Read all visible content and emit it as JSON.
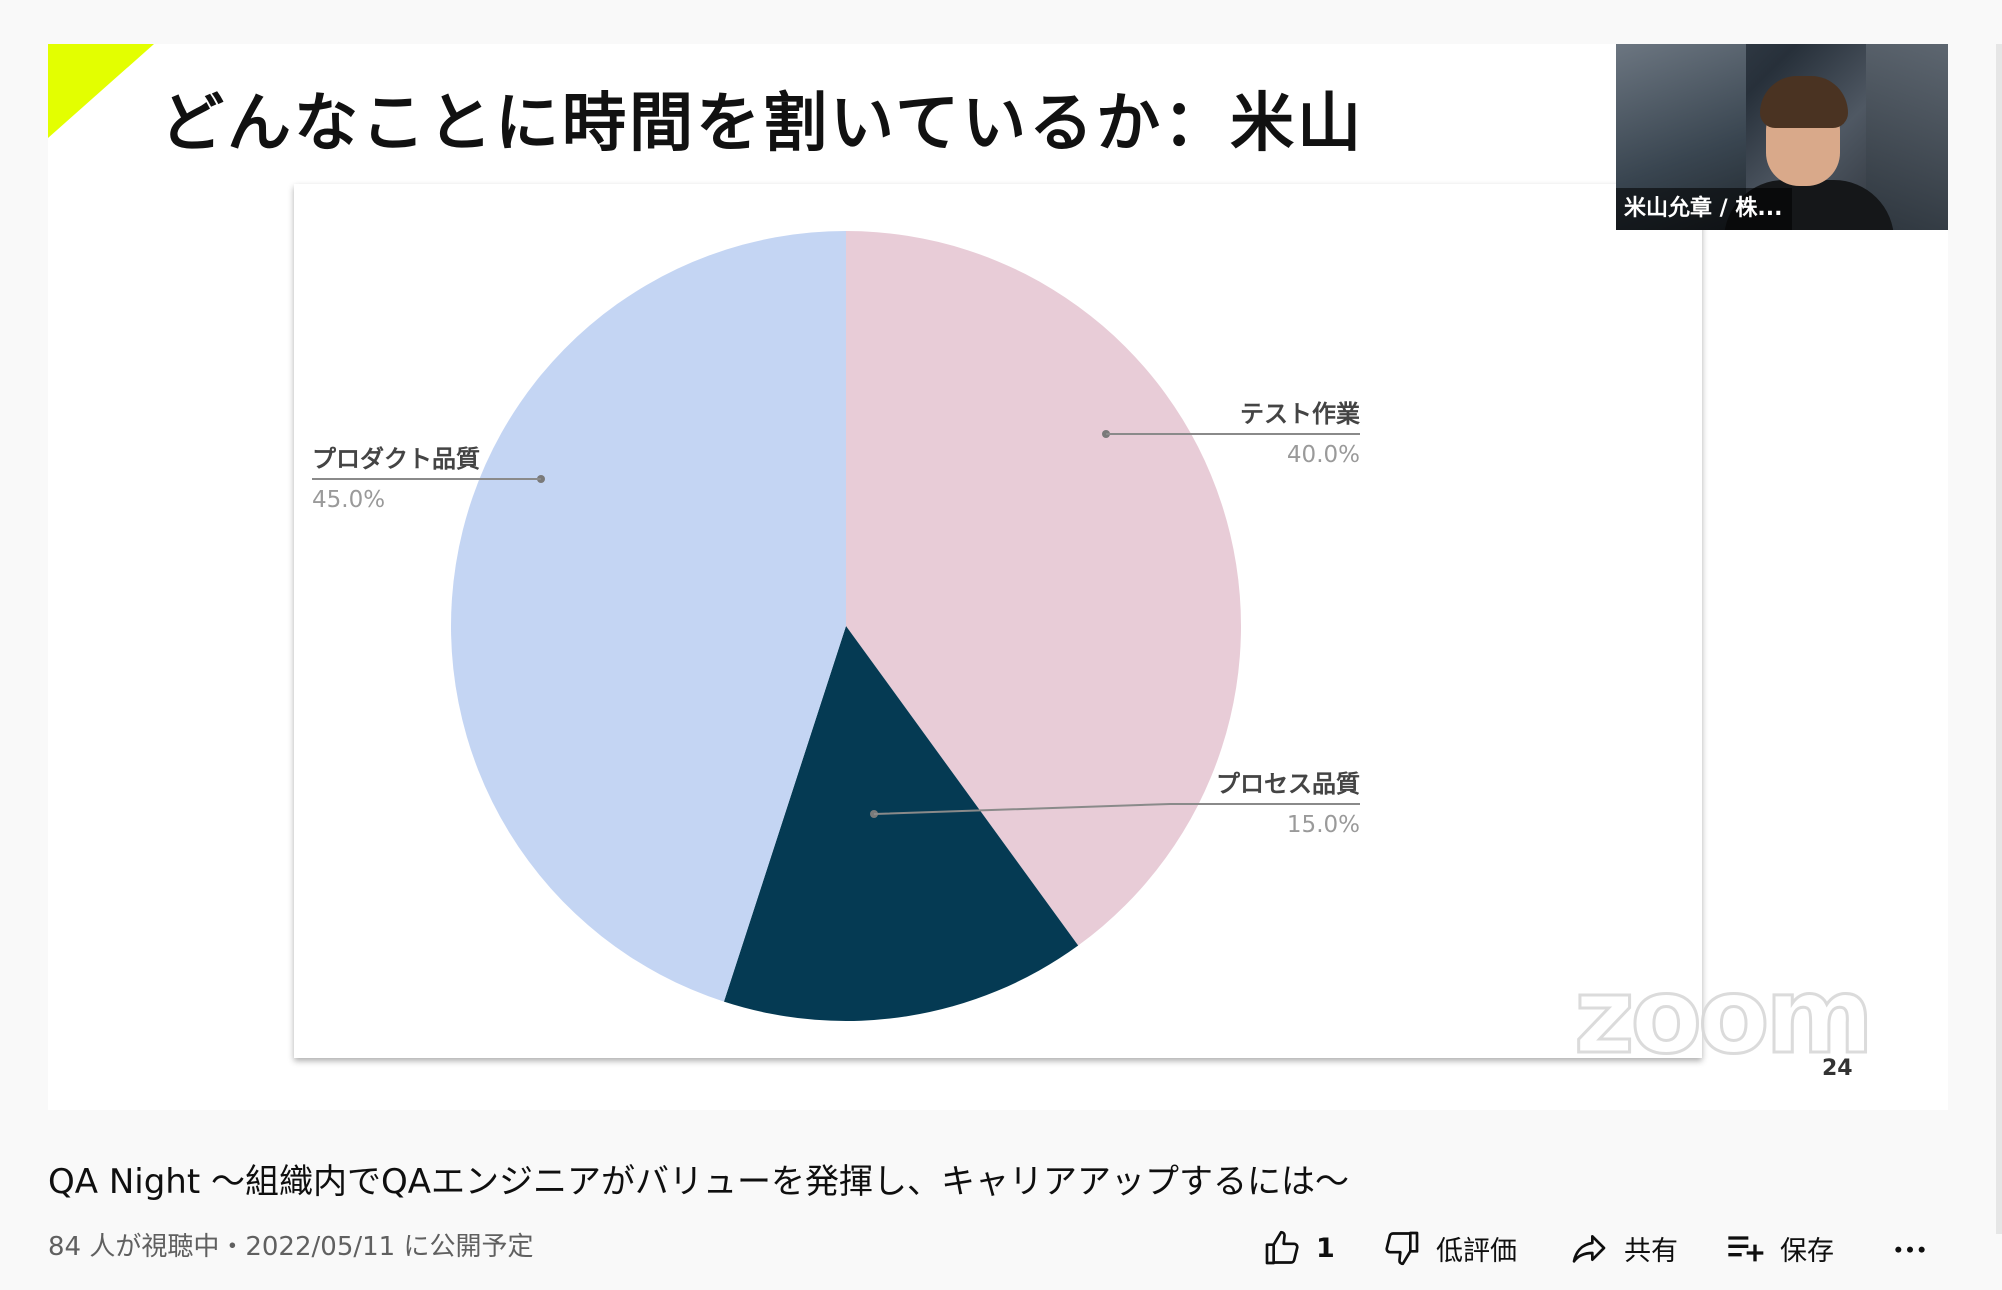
{
  "slide": {
    "title": "どんなことに時間を割いているか：米山",
    "page_number": "24",
    "watermark": "zoom"
  },
  "webcam": {
    "name_label": "米山允章 / 株..."
  },
  "chart_data": {
    "type": "pie",
    "title": "",
    "slices": [
      {
        "label": "テスト作業",
        "percent_label": "40.0%",
        "value": 40.0,
        "color": "#e8ccd7"
      },
      {
        "label": "プロセス品質",
        "percent_label": "15.0%",
        "value": 15.0,
        "color": "#053a53"
      },
      {
        "label": "プロダクト品質",
        "percent_label": "45.0%",
        "value": 45.0,
        "color": "#c4d5f3"
      }
    ],
    "start_angle": "12 o'clock",
    "direction": "clockwise",
    "legend": "callout labels"
  },
  "video": {
    "title": "QA Night 〜組織内でQAエンジニアがバリューを発揮し、キャリアアップするには〜",
    "meta": "84 人が視聴中・2022/05/11 に公開予定"
  },
  "actions": {
    "like_count": "1",
    "dislike_label": "低評価",
    "share_label": "共有",
    "save_label": "保存"
  },
  "icons": {
    "like": "thumbs-up-icon",
    "dislike": "thumbs-down-icon",
    "share": "share-arrow-icon",
    "save": "playlist-add-icon",
    "more": "more-horizontal-icon"
  }
}
